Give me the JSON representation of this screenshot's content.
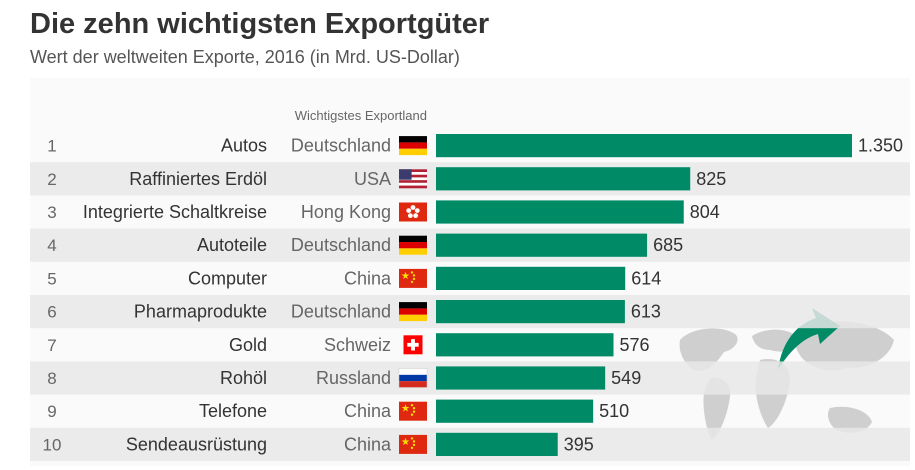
{
  "title": "Die zehn wichtigsten Exportgüter",
  "subtitle": "Wert der weltweiten Exporte, 2016 (in Mrd. US-Dollar)",
  "colors": {
    "bar": "#008a65",
    "stripe": "#e8e8e8",
    "panel": "#fafafa",
    "map": "#cfcfcf",
    "arrow": "#008a65"
  },
  "decoration": {
    "icon": "world-map-export-arrow-icon"
  },
  "chart_data": {
    "type": "bar",
    "orientation": "horizontal",
    "column_header": "Wichtigstes Exportland",
    "xlim": [
      0,
      1350
    ],
    "grid": false,
    "ranks": [
      "1",
      "2",
      "3",
      "4",
      "5",
      "6",
      "7",
      "8",
      "9",
      "10"
    ],
    "categories": [
      "Autos",
      "Raffiniertes Erdöl",
      "Integrierte Schaltkreise",
      "Autoteile",
      "Computer",
      "Pharmaprodukte",
      "Gold",
      "Rohöl",
      "Telefone",
      "Sendeausrüstung"
    ],
    "countries": [
      "Deutschland",
      "USA",
      "Hong Kong",
      "Deutschland",
      "China",
      "Deutschland",
      "Schweiz",
      "Russland",
      "China",
      "China"
    ],
    "flags": [
      "flag-germany-icon",
      "flag-usa-icon",
      "flag-hong-kong-icon",
      "flag-germany-icon",
      "flag-china-icon",
      "flag-germany-icon",
      "flag-switzerland-icon",
      "flag-russia-icon",
      "flag-china-icon",
      "flag-china-icon"
    ],
    "values": [
      1350,
      825,
      804,
      685,
      614,
      613,
      576,
      549,
      510,
      395
    ],
    "value_labels": [
      "1.350",
      "825",
      "804",
      "685",
      "614",
      "613",
      "576",
      "549",
      "510",
      "395"
    ]
  }
}
